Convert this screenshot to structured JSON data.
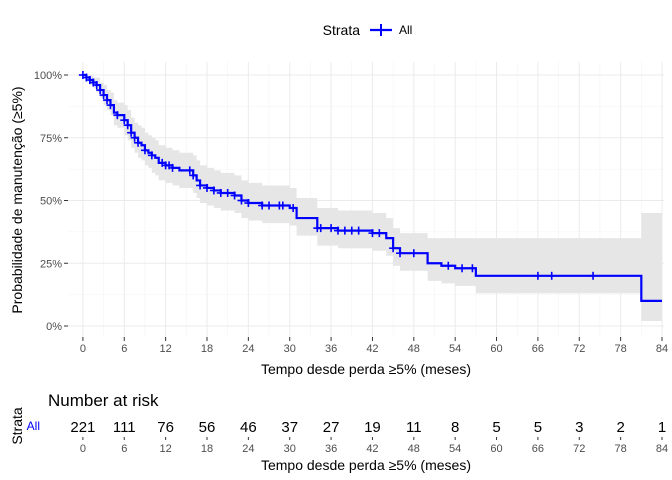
{
  "legend": {
    "title": "Strata",
    "entries": [
      {
        "name": "All",
        "color": "#0000ff"
      }
    ],
    "placement": "top"
  },
  "chart_data": {
    "type": "line",
    "subtype": "kaplan-meier",
    "title": "",
    "xlabel": "Tempo desde perda ≥5% (meses)",
    "ylabel": "Probabilidade de manutenção (≥5%)",
    "xlim": [
      -1,
      84
    ],
    "ylim": [
      0,
      1
    ],
    "x_ticks": [
      0,
      6,
      12,
      18,
      24,
      30,
      36,
      42,
      48,
      54,
      60,
      66,
      72,
      78,
      84
    ],
    "x_tick_labels": [
      "0",
      "6",
      "12",
      "18",
      "24",
      "30",
      "36",
      "42",
      "48",
      "54",
      "60",
      "66",
      "72",
      "78",
      "84"
    ],
    "y_ticks": [
      0,
      0.25,
      0.5,
      0.75,
      1.0
    ],
    "y_tick_labels": [
      "0%",
      "25%",
      "50%",
      "75%",
      "100%"
    ],
    "grid": true,
    "series": [
      {
        "name": "All",
        "color": "#0000ff",
        "step_x": [
          0,
          0.5,
          1,
          1.5,
          2,
          2.5,
          3,
          3.5,
          4,
          4.5,
          5,
          6,
          6.5,
          7,
          7.5,
          8,
          8.5,
          9,
          9.5,
          10,
          10.5,
          11,
          12,
          13,
          14,
          15,
          16,
          16.5,
          17,
          18,
          19,
          20,
          21,
          22,
          23,
          24,
          26,
          28,
          30,
          31,
          33,
          34,
          36,
          37,
          42,
          44,
          45,
          46,
          48,
          50,
          51,
          52,
          54,
          56,
          57,
          81,
          84
        ],
        "step_y": [
          1.0,
          0.99,
          0.98,
          0.97,
          0.96,
          0.94,
          0.92,
          0.9,
          0.88,
          0.85,
          0.84,
          0.82,
          0.8,
          0.77,
          0.75,
          0.73,
          0.72,
          0.7,
          0.69,
          0.68,
          0.67,
          0.65,
          0.64,
          0.63,
          0.62,
          0.62,
          0.6,
          0.58,
          0.56,
          0.55,
          0.54,
          0.53,
          0.53,
          0.52,
          0.5,
          0.49,
          0.48,
          0.48,
          0.47,
          0.43,
          0.43,
          0.39,
          0.39,
          0.38,
          0.37,
          0.35,
          0.31,
          0.29,
          0.29,
          0.25,
          0.25,
          0.24,
          0.23,
          0.23,
          0.2,
          0.1,
          0.1
        ],
        "ci_lower": [
          1.0,
          0.98,
          0.96,
          0.95,
          0.93,
          0.91,
          0.88,
          0.86,
          0.84,
          0.8,
          0.79,
          0.76,
          0.74,
          0.71,
          0.69,
          0.67,
          0.66,
          0.64,
          0.63,
          0.61,
          0.6,
          0.58,
          0.57,
          0.56,
          0.55,
          0.55,
          0.53,
          0.51,
          0.49,
          0.48,
          0.47,
          0.46,
          0.46,
          0.45,
          0.43,
          0.42,
          0.41,
          0.41,
          0.4,
          0.36,
          0.36,
          0.32,
          0.32,
          0.31,
          0.3,
          0.28,
          0.24,
          0.22,
          0.22,
          0.18,
          0.18,
          0.17,
          0.16,
          0.16,
          0.13,
          0.02,
          0.02
        ],
        "ci_upper": [
          1.0,
          1.0,
          1.0,
          0.99,
          0.99,
          0.97,
          0.96,
          0.94,
          0.93,
          0.9,
          0.89,
          0.88,
          0.86,
          0.83,
          0.81,
          0.8,
          0.79,
          0.77,
          0.76,
          0.75,
          0.74,
          0.72,
          0.71,
          0.7,
          0.69,
          0.69,
          0.68,
          0.66,
          0.64,
          0.63,
          0.62,
          0.61,
          0.61,
          0.6,
          0.58,
          0.57,
          0.56,
          0.56,
          0.55,
          0.51,
          0.51,
          0.47,
          0.47,
          0.46,
          0.45,
          0.43,
          0.39,
          0.37,
          0.37,
          0.35,
          0.35,
          0.35,
          0.35,
          0.35,
          0.35,
          0.45,
          0.45
        ],
        "censor_times": [
          0,
          0.5,
          1,
          1.5,
          2,
          2.5,
          3,
          3.5,
          4,
          5,
          6,
          6.5,
          7,
          7.5,
          8,
          9,
          10,
          11.5,
          12,
          12.5,
          13,
          15.5,
          16,
          17,
          18,
          19,
          20,
          21,
          22,
          23,
          24,
          26,
          27,
          28.5,
          29,
          30.5,
          34,
          34.5,
          36,
          37,
          38,
          39,
          40,
          42,
          43,
          45,
          46,
          48,
          53,
          55,
          56.5,
          66,
          68,
          74
        ]
      }
    ]
  },
  "risk_table": {
    "title": "Number at risk",
    "ylabel": "Strata",
    "strata_label": "All",
    "strata_color": "#0000ff",
    "xlabel": "Tempo desde perda ≥5% (meses)",
    "times": [
      0,
      6,
      12,
      18,
      24,
      30,
      36,
      42,
      48,
      54,
      60,
      66,
      72,
      78,
      84
    ],
    "time_labels": [
      "0",
      "6",
      "12",
      "18",
      "24",
      "30",
      "36",
      "42",
      "48",
      "54",
      "60",
      "66",
      "72",
      "78",
      "84"
    ],
    "counts": [
      "221",
      "111",
      "76",
      "56",
      "46",
      "37",
      "27",
      "19",
      "11",
      "8",
      "5",
      "5",
      "3",
      "2",
      "1"
    ]
  }
}
